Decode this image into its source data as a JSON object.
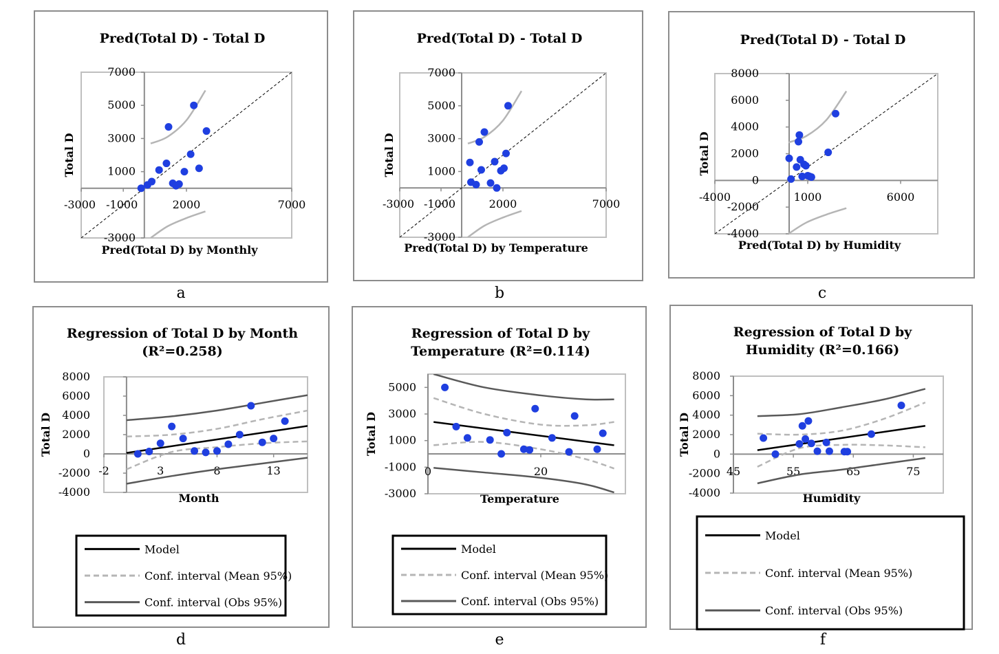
{
  "colors": {
    "point": "#1f3fe0",
    "model": "#000000",
    "conf_mean": "#b5b5b5",
    "conf_obs": "#595959",
    "axis": "#8c8c8c",
    "plot_border": "#bfbfbf"
  },
  "captions": [
    "a",
    "b",
    "c",
    "d",
    "e",
    "f"
  ],
  "legend": {
    "model": "Model",
    "conf_mean": "Conf. interval (Mean 95%)",
    "conf_obs": "Conf. interval (Obs 95%)"
  },
  "chart_data": [
    {
      "id": "a",
      "type": "scatter",
      "title": "Pred(Total D) - Total D",
      "xlabel": "Pred(Total D) by Monthly",
      "ylabel": "Total D",
      "xlim": [
        -3000,
        7000
      ],
      "ylim": [
        -3000,
        7000
      ],
      "xticks": [
        "-3000",
        "-1000",
        "2000",
        "7000"
      ],
      "yticks": [
        "-3000",
        "1000",
        "3000",
        "5000",
        "7000"
      ],
      "x": [
        -150,
        150,
        350,
        700,
        1050,
        1150,
        1350,
        1500,
        1650,
        1900,
        2200,
        2350,
        2600,
        2950
      ],
      "y": [
        0,
        200,
        400,
        1100,
        1500,
        3700,
        300,
        150,
        250,
        1000,
        2050,
        5000,
        1200,
        3450
      ],
      "diagonal": true,
      "guide_curves": true
    },
    {
      "id": "b",
      "type": "scatter",
      "title": "Pred(Total D) - Total D",
      "xlabel": "Pred(Total D) by Temperature",
      "ylabel": "Total D",
      "xlim": [
        -3000,
        7000
      ],
      "ylim": [
        -3000,
        7000
      ],
      "xticks": [
        "-3000",
        "-1000",
        "2000",
        "7000"
      ],
      "yticks": [
        "-3000",
        "1000",
        "3000",
        "5000",
        "7000"
      ],
      "x": [
        400,
        450,
        700,
        850,
        950,
        1100,
        1400,
        1600,
        1700,
        1900,
        2050,
        2150
      ],
      "y": [
        1550,
        350,
        200,
        2800,
        1100,
        3400,
        300,
        1600,
        0,
        1050,
        1200,
        2100
      ],
      "extra_points": {
        "x": [
          2250
        ],
        "y": [
          5000
        ]
      },
      "diagonal": true,
      "guide_curves": true
    },
    {
      "id": "c",
      "type": "scatter",
      "title": "Pred(Total D) - Total D",
      "xlabel": "Pred(Total D) by Humidity",
      "ylabel": "Total D",
      "xlim": [
        -4000,
        8000
      ],
      "ylim": [
        -4000,
        8000
      ],
      "xticks": [
        "-4000",
        "1000",
        "6000"
      ],
      "yticks": [
        "-4000",
        "-2000",
        "0",
        "2000",
        "4000",
        "6000",
        "8000"
      ],
      "x": [
        0,
        100,
        400,
        500,
        550,
        600,
        700,
        800,
        900,
        1000,
        1100,
        1200,
        2100,
        2500
      ],
      "y": [
        1650,
        100,
        1000,
        2900,
        3400,
        1550,
        300,
        1200,
        1100,
        350,
        300,
        250,
        2100,
        5000
      ],
      "diagonal": true,
      "guide_curves": true
    },
    {
      "id": "d",
      "type": "scatter",
      "title": "Regression of Total D by Month",
      "r2": "(R²=0.258)",
      "xlabel": "Month",
      "ylabel": "Total D",
      "xlim": [
        -2,
        16
      ],
      "ylim": [
        -4000,
        8000
      ],
      "xticks": [
        "-2",
        "3",
        "8",
        "13"
      ],
      "yticks": [
        "-4000",
        "-2000",
        "0",
        "2000",
        "4000",
        "6000",
        "8000"
      ],
      "x": [
        1,
        2,
        3,
        4,
        5,
        6,
        7,
        8,
        9,
        10,
        11,
        12,
        13,
        14
      ],
      "y": [
        0,
        250,
        1100,
        2850,
        1600,
        300,
        150,
        300,
        1000,
        2000,
        5000,
        1200,
        1600,
        3400
      ],
      "model": [
        [
          0,
          100
        ],
        [
          16,
          2900
        ]
      ],
      "conf_mean_upper": [
        [
          0,
          1800
        ],
        [
          4,
          2000
        ],
        [
          8,
          2600
        ],
        [
          12,
          3600
        ],
        [
          16,
          4500
        ]
      ],
      "conf_mean_lower": [
        [
          0,
          -1600
        ],
        [
          4,
          200
        ],
        [
          8,
          700
        ],
        [
          12,
          1100
        ],
        [
          16,
          1300
        ]
      ],
      "conf_obs_upper": [
        [
          0,
          3500
        ],
        [
          4,
          3900
        ],
        [
          8,
          4500
        ],
        [
          12,
          5300
        ],
        [
          16,
          6100
        ]
      ],
      "conf_obs_lower": [
        [
          0,
          -3100
        ],
        [
          4,
          -2300
        ],
        [
          8,
          -1600
        ],
        [
          12,
          -1000
        ],
        [
          16,
          -400
        ]
      ]
    },
    {
      "id": "e",
      "type": "scatter",
      "title": "Regression of Total D by",
      "title2": "Temperature (R²=0.114)",
      "xlabel": "Temperature",
      "ylabel": "Total D",
      "xlim": [
        0,
        35
      ],
      "ylim": [
        -3000,
        6000
      ],
      "xticks": [
        "0",
        "20"
      ],
      "yticks": [
        "-3000",
        "-1000",
        "1000",
        "3000",
        "5000"
      ],
      "x": [
        3,
        5,
        7,
        11,
        13,
        14,
        17,
        18,
        19,
        22,
        25,
        26,
        30,
        31
      ],
      "y": [
        5000,
        2050,
        1200,
        1050,
        0,
        1600,
        350,
        300,
        3400,
        1200,
        150,
        2850,
        350,
        1550
      ],
      "model": [
        [
          1,
          2400
        ],
        [
          33,
          650
        ]
      ],
      "conf_mean_upper": [
        [
          1,
          4200
        ],
        [
          10,
          3000
        ],
        [
          20,
          2200
        ],
        [
          28,
          2150
        ],
        [
          33,
          2400
        ]
      ],
      "conf_mean_lower": [
        [
          1,
          650
        ],
        [
          10,
          900
        ],
        [
          20,
          350
        ],
        [
          28,
          -400
        ],
        [
          33,
          -1100
        ]
      ],
      "conf_obs_upper": [
        [
          1,
          6000
        ],
        [
          10,
          5000
        ],
        [
          20,
          4400
        ],
        [
          28,
          4100
        ],
        [
          33,
          4100
        ]
      ],
      "conf_obs_lower": [
        [
          1,
          -1050
        ],
        [
          10,
          -1400
        ],
        [
          20,
          -1800
        ],
        [
          28,
          -2300
        ],
        [
          33,
          -2900
        ]
      ]
    },
    {
      "id": "f",
      "type": "scatter",
      "title": "Regression of Total D by",
      "title2": "Humidity (R²=0.166)",
      "xlabel": "Humidity",
      "ylabel": "Total D",
      "xlim": [
        45,
        80
      ],
      "ylim": [
        -4000,
        8000
      ],
      "xticks": [
        "45",
        "55",
        "65",
        "75"
      ],
      "yticks": [
        "-4000",
        "-2000",
        "0",
        "2000",
        "4000",
        "6000",
        "8000"
      ],
      "x": [
        50,
        52,
        56,
        56.5,
        57,
        57.5,
        58,
        59,
        60.5,
        61,
        63.5,
        64,
        68,
        73
      ],
      "y": [
        1650,
        0,
        1050,
        2900,
        1550,
        3400,
        1100,
        300,
        1200,
        300,
        250,
        250,
        2050,
        5000
      ],
      "model": [
        [
          49,
          400
        ],
        [
          77,
          2900
        ]
      ],
      "conf_mean_upper": [
        [
          49,
          2100
        ],
        [
          56,
          2000
        ],
        [
          63,
          2400
        ],
        [
          70,
          3600
        ],
        [
          77,
          5300
        ]
      ],
      "conf_mean_lower": [
        [
          49,
          -1300
        ],
        [
          56,
          600
        ],
        [
          63,
          950
        ],
        [
          70,
          900
        ],
        [
          77,
          700
        ]
      ],
      "conf_obs_upper": [
        [
          49,
          3900
        ],
        [
          56,
          4100
        ],
        [
          63,
          4800
        ],
        [
          70,
          5600
        ],
        [
          77,
          6700
        ]
      ],
      "conf_obs_lower": [
        [
          49,
          -3000
        ],
        [
          56,
          -2100
        ],
        [
          63,
          -1600
        ],
        [
          70,
          -1000
        ],
        [
          77,
          -400
        ]
      ]
    }
  ]
}
